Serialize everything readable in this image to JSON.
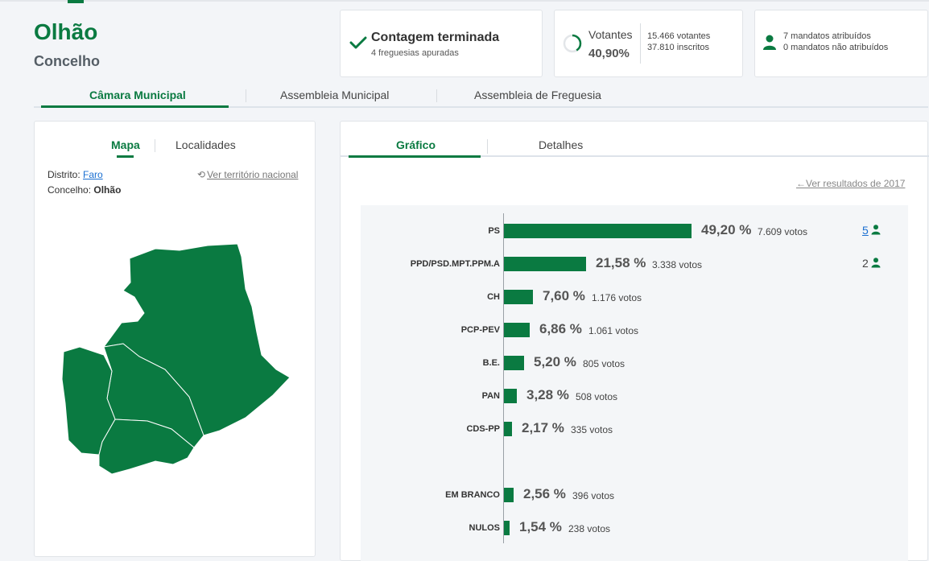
{
  "header": {
    "title": "Olhão",
    "subtitle": "Concelho"
  },
  "cards": {
    "count": {
      "title": "Contagem terminada",
      "detail": "4 freguesias apuradas"
    },
    "turnout": {
      "label": "Votantes",
      "percent": "40,90%",
      "percent_value": 40.9,
      "voters": "15.466 votantes",
      "registered": "37.810 inscritos"
    },
    "mandates": {
      "assigned": "7 mandatos atribuídos",
      "unassigned": "0 mandatos não atribuídos"
    }
  },
  "tabs": [
    "Câmara Municipal",
    "Assembleia Municipal",
    "Assembleia de Freguesia"
  ],
  "left_panel": {
    "tabs": [
      "Mapa",
      "Localidades"
    ],
    "district_label": "Distrito:",
    "district_value": "Faro",
    "municipality_label": "Concelho:",
    "municipality_value": "Olhão",
    "national_link": "Ver território nacional"
  },
  "right_panel": {
    "tabs": [
      "Gráfico",
      "Detalhes"
    ],
    "previous_link": "Ver resultados de 2017"
  },
  "colors": {
    "accent": "#0a7a41",
    "link": "#1a6fd1"
  },
  "chart_data": {
    "type": "bar",
    "orientation": "horizontal",
    "categories": [
      "PS",
      "PPD/PSD.MPT.PPM.A",
      "CH",
      "PCP-PEV",
      "B.E.",
      "PAN",
      "CDS-PP",
      "EM BRANCO",
      "NULOS"
    ],
    "values": [
      49.2,
      21.58,
      7.6,
      6.86,
      5.2,
      3.28,
      2.17,
      2.56,
      1.54
    ],
    "rows": [
      {
        "party": "PS",
        "pct": "49,20 %",
        "value": 49.2,
        "votes": "7.609 votos",
        "seats": "5"
      },
      {
        "party": "PPD/PSD.MPT.PPM.A",
        "pct": "21,58 %",
        "value": 21.58,
        "votes": "3.338 votos",
        "seats": "2"
      },
      {
        "party": "CH",
        "pct": "7,60 %",
        "value": 7.6,
        "votes": "1.176 votos",
        "seats": ""
      },
      {
        "party": "PCP-PEV",
        "pct": "6,86 %",
        "value": 6.86,
        "votes": "1.061 votos",
        "seats": ""
      },
      {
        "party": "B.E.",
        "pct": "5,20 %",
        "value": 5.2,
        "votes": "805 votos",
        "seats": ""
      },
      {
        "party": "PAN",
        "pct": "3,28 %",
        "value": 3.28,
        "votes": "508 votos",
        "seats": ""
      },
      {
        "party": "CDS-PP",
        "pct": "2,17 %",
        "value": 2.17,
        "votes": "335 votos",
        "seats": ""
      },
      {
        "party": "EM BRANCO",
        "pct": "2,56 %",
        "value": 2.56,
        "votes": "396 votos",
        "seats": ""
      },
      {
        "party": "NULOS",
        "pct": "1,54 %",
        "value": 1.54,
        "votes": "238 votos",
        "seats": ""
      }
    ],
    "title": "",
    "xlabel": "",
    "ylabel": "",
    "xlim": [
      0,
      49.2
    ]
  }
}
